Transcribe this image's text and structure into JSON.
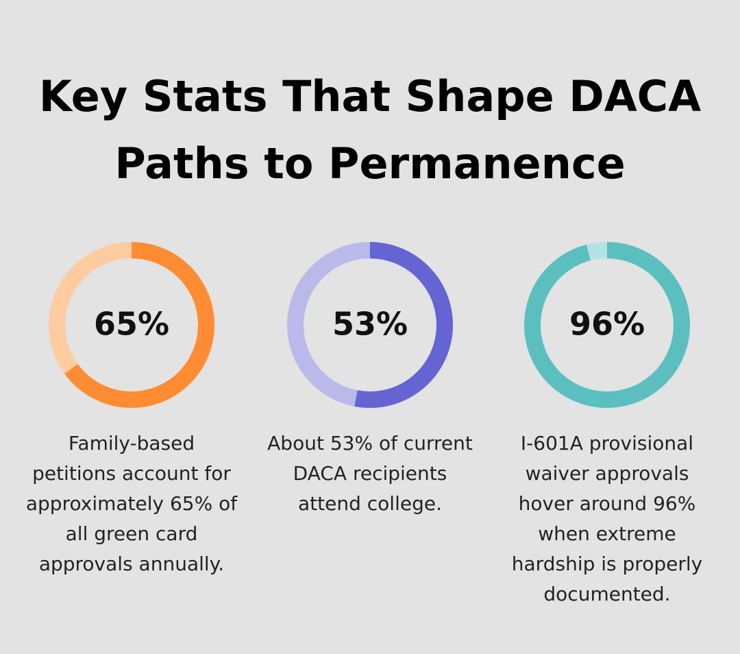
{
  "title": "Key Stats That Shape DACA Paths to Permanence",
  "stats": [
    {
      "value": 65,
      "value_label": "65%",
      "color": "#ff8c33",
      "track_color": "#ffcba0",
      "description": "Family-based petitions account for approximately 65% of all green card approvals annually."
    },
    {
      "value": 53,
      "value_label": "53%",
      "color": "#6464d2",
      "track_color": "#b9b9ea",
      "description": "About 53% of current DACA recipients attend college."
    },
    {
      "value": 96,
      "value_label": "96%",
      "color": "#5bbfc0",
      "track_color": "#b5e3e4",
      "description": "I-601A provisional waiver approvals hover around 96% when extreme hardship is properly documented."
    }
  ]
}
